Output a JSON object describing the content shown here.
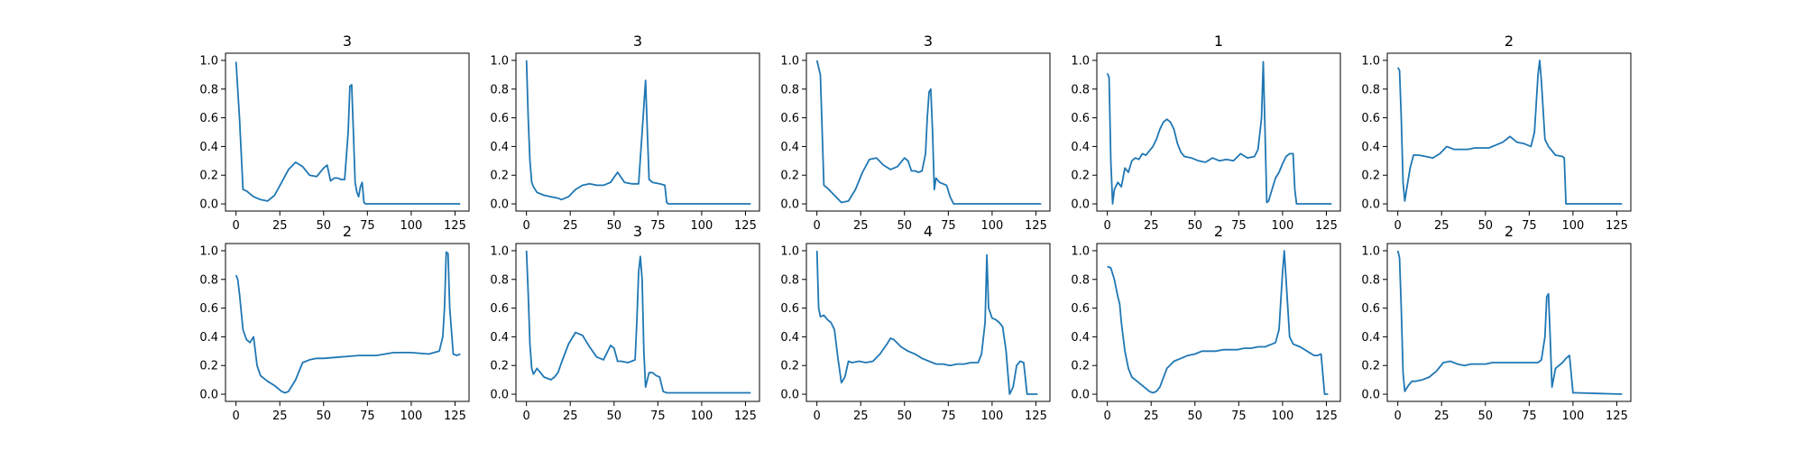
{
  "chart_data": [
    {
      "type": "line",
      "title": "3",
      "xlabel": "",
      "ylabel": "",
      "xlim": [
        -6,
        133
      ],
      "ylim": [
        -0.05,
        1.05
      ],
      "xticks": [
        "0",
        "25",
        "50",
        "75",
        "100",
        "125"
      ],
      "yticks": [
        "0.0",
        "0.2",
        "0.4",
        "0.6",
        "0.8",
        "1.0"
      ],
      "grid": false,
      "color": "#1f77b4",
      "x": [
        0,
        2,
        4,
        6,
        8,
        10,
        14,
        18,
        22,
        26,
        30,
        34,
        38,
        42,
        46,
        50,
        52,
        54,
        56,
        58,
        60,
        62,
        64,
        65,
        66,
        67,
        68,
        69,
        70,
        71,
        72,
        73,
        74,
        80,
        100,
        128
      ],
      "y": [
        0.99,
        0.6,
        0.1,
        0.09,
        0.07,
        0.05,
        0.03,
        0.02,
        0.06,
        0.15,
        0.24,
        0.29,
        0.26,
        0.2,
        0.19,
        0.25,
        0.27,
        0.16,
        0.18,
        0.18,
        0.17,
        0.17,
        0.5,
        0.82,
        0.83,
        0.5,
        0.15,
        0.08,
        0.05,
        0.12,
        0.15,
        0.01,
        0.0,
        0.0,
        0.0,
        0.0
      ]
    },
    {
      "type": "line",
      "title": "3",
      "xlabel": "",
      "ylabel": "",
      "xlim": [
        -6,
        133
      ],
      "ylim": [
        -0.05,
        1.05
      ],
      "xticks": [
        "0",
        "25",
        "50",
        "75",
        "100",
        "125"
      ],
      "yticks": [
        "0.0",
        "0.2",
        "0.4",
        "0.6",
        "0.8",
        "1.0"
      ],
      "grid": false,
      "color": "#1f77b4",
      "x": [
        0,
        1,
        2,
        3,
        4,
        6,
        10,
        14,
        18,
        20,
        24,
        28,
        32,
        36,
        40,
        44,
        48,
        52,
        56,
        60,
        64,
        66,
        68,
        69,
        70,
        72,
        76,
        79,
        80,
        81,
        90,
        128
      ],
      "y": [
        1.0,
        0.6,
        0.3,
        0.15,
        0.12,
        0.08,
        0.06,
        0.05,
        0.04,
        0.03,
        0.05,
        0.1,
        0.13,
        0.14,
        0.13,
        0.13,
        0.15,
        0.22,
        0.15,
        0.14,
        0.14,
        0.5,
        0.86,
        0.5,
        0.17,
        0.15,
        0.14,
        0.13,
        0.01,
        0.0,
        0.0,
        0.0
      ]
    },
    {
      "type": "line",
      "title": "3",
      "xlabel": "",
      "ylabel": "",
      "xlim": [
        -6,
        133
      ],
      "ylim": [
        -0.05,
        1.05
      ],
      "xticks": [
        "0",
        "25",
        "50",
        "75",
        "100",
        "125"
      ],
      "yticks": [
        "0.0",
        "0.2",
        "0.4",
        "0.6",
        "0.8",
        "1.0"
      ],
      "grid": false,
      "color": "#1f77b4",
      "x": [
        0,
        2,
        4,
        6,
        10,
        14,
        18,
        22,
        26,
        30,
        34,
        38,
        42,
        46,
        50,
        52,
        54,
        56,
        58,
        60,
        62,
        63,
        64,
        65,
        66,
        67,
        68,
        70,
        72,
        74,
        76,
        78,
        80,
        100,
        128
      ],
      "y": [
        1.0,
        0.9,
        0.13,
        0.11,
        0.06,
        0.01,
        0.02,
        0.1,
        0.22,
        0.31,
        0.32,
        0.27,
        0.24,
        0.26,
        0.32,
        0.3,
        0.23,
        0.23,
        0.22,
        0.23,
        0.35,
        0.6,
        0.78,
        0.8,
        0.5,
        0.1,
        0.18,
        0.15,
        0.14,
        0.13,
        0.05,
        0.0,
        0.0,
        0.0,
        0.0
      ]
    },
    {
      "type": "line",
      "title": "1",
      "xlabel": "",
      "ylabel": "",
      "xlim": [
        -6,
        133
      ],
      "ylim": [
        -0.05,
        1.05
      ],
      "xticks": [
        "0",
        "25",
        "50",
        "75",
        "100",
        "125"
      ],
      "yticks": [
        "0.0",
        "0.2",
        "0.4",
        "0.6",
        "0.8",
        "1.0"
      ],
      "grid": false,
      "color": "#1f77b4",
      "x": [
        0,
        1,
        2,
        3,
        4,
        6,
        8,
        10,
        12,
        14,
        16,
        18,
        20,
        22,
        24,
        26,
        28,
        30,
        32,
        34,
        36,
        38,
        40,
        42,
        44,
        48,
        52,
        56,
        60,
        64,
        68,
        72,
        76,
        80,
        84,
        86,
        88,
        89,
        90,
        91,
        92,
        94,
        96,
        98,
        100,
        102,
        104,
        106,
        107,
        108,
        110,
        128
      ],
      "y": [
        0.91,
        0.88,
        0.3,
        0.0,
        0.1,
        0.15,
        0.12,
        0.25,
        0.22,
        0.3,
        0.32,
        0.31,
        0.35,
        0.34,
        0.37,
        0.4,
        0.45,
        0.52,
        0.57,
        0.59,
        0.57,
        0.52,
        0.42,
        0.36,
        0.33,
        0.32,
        0.3,
        0.29,
        0.32,
        0.3,
        0.31,
        0.3,
        0.35,
        0.32,
        0.33,
        0.38,
        0.6,
        0.99,
        0.5,
        0.01,
        0.02,
        0.1,
        0.18,
        0.22,
        0.28,
        0.33,
        0.35,
        0.35,
        0.1,
        0.0,
        0.0,
        0.0
      ]
    },
    {
      "type": "line",
      "title": "2",
      "xlabel": "",
      "ylabel": "",
      "xlim": [
        -6,
        133
      ],
      "ylim": [
        -0.05,
        1.05
      ],
      "xticks": [
        "0",
        "25",
        "50",
        "75",
        "100",
        "125"
      ],
      "yticks": [
        "0.0",
        "0.2",
        "0.4",
        "0.6",
        "0.8",
        "1.0"
      ],
      "grid": false,
      "color": "#1f77b4",
      "x": [
        0,
        1,
        2,
        3,
        4,
        5,
        7,
        9,
        12,
        16,
        20,
        24,
        28,
        32,
        36,
        40,
        44,
        48,
        52,
        56,
        60,
        64,
        68,
        72,
        76,
        78,
        80,
        81,
        82,
        84,
        86,
        90,
        94,
        95,
        96,
        100,
        128
      ],
      "y": [
        0.95,
        0.93,
        0.6,
        0.15,
        0.02,
        0.1,
        0.25,
        0.34,
        0.34,
        0.33,
        0.32,
        0.35,
        0.4,
        0.38,
        0.38,
        0.38,
        0.39,
        0.39,
        0.39,
        0.41,
        0.43,
        0.47,
        0.43,
        0.42,
        0.4,
        0.5,
        0.9,
        1.0,
        0.85,
        0.45,
        0.4,
        0.34,
        0.33,
        0.32,
        0.0,
        0.0,
        0.0
      ]
    },
    {
      "type": "line",
      "title": "2",
      "xlabel": "",
      "ylabel": "",
      "xlim": [
        -6,
        133
      ],
      "ylim": [
        -0.05,
        1.05
      ],
      "xticks": [
        "0",
        "25",
        "50",
        "75",
        "100",
        "125"
      ],
      "yticks": [
        "0.0",
        "0.2",
        "0.4",
        "0.6",
        "0.8",
        "1.0"
      ],
      "grid": false,
      "color": "#1f77b4",
      "x": [
        0,
        1,
        2,
        4,
        6,
        8,
        10,
        12,
        14,
        18,
        22,
        26,
        28,
        30,
        34,
        38,
        42,
        46,
        50,
        60,
        70,
        80,
        90,
        100,
        110,
        116,
        118,
        119,
        120,
        121,
        122,
        124,
        126,
        128
      ],
      "y": [
        0.83,
        0.8,
        0.7,
        0.45,
        0.38,
        0.36,
        0.4,
        0.2,
        0.13,
        0.09,
        0.06,
        0.02,
        0.01,
        0.02,
        0.1,
        0.22,
        0.24,
        0.25,
        0.25,
        0.26,
        0.27,
        0.27,
        0.29,
        0.29,
        0.28,
        0.3,
        0.4,
        0.6,
        0.99,
        0.98,
        0.6,
        0.28,
        0.27,
        0.28
      ]
    },
    {
      "type": "line",
      "title": "3",
      "xlabel": "",
      "ylabel": "",
      "xlim": [
        -6,
        133
      ],
      "ylim": [
        -0.05,
        1.05
      ],
      "xticks": [
        "0",
        "25",
        "50",
        "75",
        "100",
        "125"
      ],
      "yticks": [
        "0.0",
        "0.2",
        "0.4",
        "0.6",
        "0.8",
        "1.0"
      ],
      "grid": false,
      "color": "#1f77b4",
      "x": [
        0,
        1,
        2,
        3,
        4,
        5,
        6,
        8,
        10,
        12,
        14,
        16,
        18,
        20,
        24,
        28,
        32,
        36,
        40,
        44,
        48,
        50,
        52,
        54,
        58,
        62,
        63,
        64,
        65,
        66,
        67,
        68,
        70,
        72,
        74,
        76,
        78,
        80,
        100,
        128
      ],
      "y": [
        1.0,
        0.7,
        0.35,
        0.18,
        0.14,
        0.16,
        0.18,
        0.15,
        0.12,
        0.11,
        0.1,
        0.12,
        0.15,
        0.22,
        0.35,
        0.43,
        0.41,
        0.33,
        0.26,
        0.24,
        0.34,
        0.32,
        0.23,
        0.23,
        0.22,
        0.24,
        0.5,
        0.85,
        0.96,
        0.8,
        0.3,
        0.05,
        0.15,
        0.15,
        0.13,
        0.12,
        0.02,
        0.01,
        0.01,
        0.01
      ]
    },
    {
      "type": "line",
      "title": "4",
      "xlabel": "",
      "ylabel": "",
      "xlim": [
        -6,
        133
      ],
      "ylim": [
        -0.05,
        1.05
      ],
      "xticks": [
        "0",
        "25",
        "50",
        "75",
        "100",
        "125"
      ],
      "yticks": [
        "0.0",
        "0.2",
        "0.4",
        "0.6",
        "0.8",
        "1.0"
      ],
      "grid": false,
      "color": "#1f77b4",
      "x": [
        0,
        1,
        2,
        4,
        6,
        8,
        10,
        12,
        14,
        16,
        18,
        20,
        24,
        28,
        32,
        36,
        40,
        42,
        44,
        48,
        52,
        56,
        60,
        64,
        68,
        72,
        76,
        80,
        84,
        88,
        92,
        94,
        96,
        97,
        98,
        100,
        102,
        104,
        106,
        108,
        110,
        112,
        114,
        116,
        118,
        120,
        126
      ],
      "y": [
        1.0,
        0.6,
        0.54,
        0.55,
        0.52,
        0.5,
        0.45,
        0.25,
        0.08,
        0.12,
        0.23,
        0.22,
        0.23,
        0.22,
        0.23,
        0.28,
        0.35,
        0.39,
        0.38,
        0.33,
        0.3,
        0.28,
        0.25,
        0.23,
        0.21,
        0.21,
        0.2,
        0.21,
        0.21,
        0.22,
        0.22,
        0.28,
        0.5,
        0.97,
        0.6,
        0.53,
        0.52,
        0.5,
        0.47,
        0.3,
        0.0,
        0.05,
        0.2,
        0.23,
        0.22,
        0.0,
        0.0
      ]
    },
    {
      "type": "line",
      "title": "2",
      "xlabel": "",
      "ylabel": "",
      "xlim": [
        -6,
        133
      ],
      "ylim": [
        -0.05,
        1.05
      ],
      "xticks": [
        "0",
        "25",
        "50",
        "75",
        "100",
        "125"
      ],
      "yticks": [
        "0.0",
        "0.2",
        "0.4",
        "0.6",
        "0.8",
        "1.0"
      ],
      "grid": false,
      "color": "#1f77b4",
      "x": [
        0,
        2,
        4,
        6,
        7,
        8,
        10,
        12,
        14,
        18,
        22,
        24,
        26,
        28,
        30,
        34,
        38,
        42,
        46,
        50,
        54,
        58,
        62,
        66,
        70,
        74,
        78,
        82,
        86,
        90,
        94,
        96,
        98,
        100,
        101,
        102,
        104,
        106,
        110,
        114,
        118,
        120,
        122,
        124,
        126
      ],
      "y": [
        0.89,
        0.88,
        0.8,
        0.68,
        0.63,
        0.5,
        0.3,
        0.18,
        0.12,
        0.08,
        0.04,
        0.02,
        0.01,
        0.02,
        0.05,
        0.18,
        0.23,
        0.25,
        0.27,
        0.28,
        0.3,
        0.3,
        0.3,
        0.31,
        0.31,
        0.31,
        0.32,
        0.32,
        0.33,
        0.33,
        0.35,
        0.36,
        0.45,
        0.85,
        1.0,
        0.8,
        0.4,
        0.35,
        0.33,
        0.3,
        0.27,
        0.27,
        0.28,
        0.0,
        0.0
      ]
    },
    {
      "type": "line",
      "title": "2",
      "xlabel": "",
      "ylabel": "",
      "xlim": [
        -6,
        133
      ],
      "ylim": [
        -0.05,
        1.05
      ],
      "xticks": [
        "0",
        "25",
        "50",
        "75",
        "100",
        "125"
      ],
      "yticks": [
        "0.0",
        "0.2",
        "0.4",
        "0.6",
        "0.8",
        "1.0"
      ],
      "grid": false,
      "color": "#1f77b4",
      "x": [
        0,
        1,
        2,
        3,
        4,
        6,
        8,
        10,
        14,
        18,
        22,
        26,
        30,
        34,
        38,
        42,
        46,
        50,
        54,
        58,
        62,
        66,
        70,
        74,
        78,
        80,
        82,
        84,
        85,
        86,
        87,
        88,
        90,
        92,
        94,
        96,
        98,
        100,
        102,
        128
      ],
      "y": [
        1.0,
        0.95,
        0.6,
        0.15,
        0.02,
        0.06,
        0.09,
        0.09,
        0.1,
        0.12,
        0.16,
        0.22,
        0.23,
        0.21,
        0.2,
        0.21,
        0.21,
        0.21,
        0.22,
        0.22,
        0.22,
        0.22,
        0.22,
        0.22,
        0.22,
        0.22,
        0.24,
        0.4,
        0.68,
        0.7,
        0.4,
        0.05,
        0.18,
        0.2,
        0.22,
        0.25,
        0.27,
        0.01,
        0.01,
        0.0
      ]
    }
  ]
}
